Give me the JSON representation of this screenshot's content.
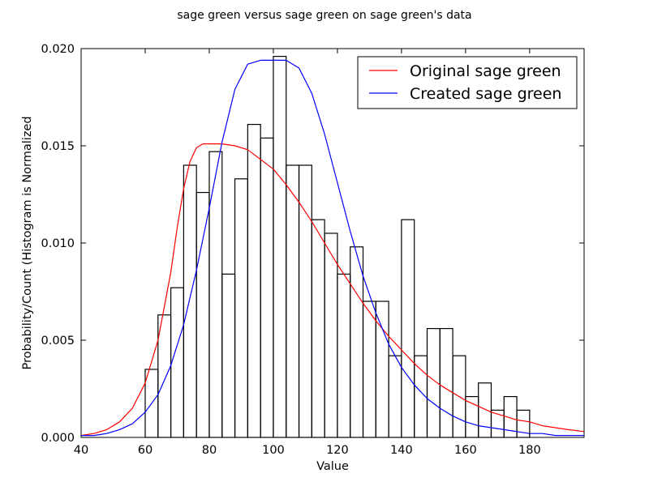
{
  "chart_data": {
    "type": "histogram",
    "title": "sage green versus sage green on sage green's data",
    "xlabel": "Value",
    "ylabel": "Probability/Count (Histogram is Normalized",
    "xlim": [
      40,
      197
    ],
    "ylim": [
      0,
      0.02
    ],
    "xticks": [
      40,
      60,
      80,
      100,
      120,
      140,
      160,
      180
    ],
    "yticks": [
      0.0,
      0.005,
      0.01,
      0.015,
      0.02
    ],
    "ytick_labels": [
      "0.000",
      "0.005",
      "0.010",
      "0.015",
      "0.020"
    ],
    "grid": false,
    "legend_position": "top-right",
    "histogram": {
      "bins": [
        {
          "x0": 60,
          "x1": 64,
          "density": 0.0035
        },
        {
          "x0": 64,
          "x1": 68,
          "density": 0.0063
        },
        {
          "x0": 68,
          "x1": 72,
          "density": 0.0077
        },
        {
          "x0": 72,
          "x1": 76,
          "density": 0.014
        },
        {
          "x0": 76,
          "x1": 80,
          "density": 0.0126
        },
        {
          "x0": 80,
          "x1": 84,
          "density": 0.0147
        },
        {
          "x0": 84,
          "x1": 88,
          "density": 0.0084
        },
        {
          "x0": 88,
          "x1": 92,
          "density": 0.0133
        },
        {
          "x0": 92,
          "x1": 96,
          "density": 0.0161
        },
        {
          "x0": 96,
          "x1": 100,
          "density": 0.0154
        },
        {
          "x0": 100,
          "x1": 104,
          "density": 0.0196
        },
        {
          "x0": 104,
          "x1": 108,
          "density": 0.014
        },
        {
          "x0": 108,
          "x1": 112,
          "density": 0.014
        },
        {
          "x0": 112,
          "x1": 116,
          "density": 0.0112
        },
        {
          "x0": 116,
          "x1": 120,
          "density": 0.0105
        },
        {
          "x0": 120,
          "x1": 124,
          "density": 0.0084
        },
        {
          "x0": 124,
          "x1": 128,
          "density": 0.0098
        },
        {
          "x0": 128,
          "x1": 132,
          "density": 0.007
        },
        {
          "x0": 132,
          "x1": 136,
          "density": 0.007
        },
        {
          "x0": 136,
          "x1": 140,
          "density": 0.0042
        },
        {
          "x0": 140,
          "x1": 144,
          "density": 0.0112
        },
        {
          "x0": 144,
          "x1": 148,
          "density": 0.0042
        },
        {
          "x0": 148,
          "x1": 152,
          "density": 0.0056
        },
        {
          "x0": 152,
          "x1": 156,
          "density": 0.0056
        },
        {
          "x0": 156,
          "x1": 160,
          "density": 0.0042
        },
        {
          "x0": 160,
          "x1": 164,
          "density": 0.0021
        },
        {
          "x0": 164,
          "x1": 168,
          "density": 0.0028
        },
        {
          "x0": 168,
          "x1": 172,
          "density": 0.0014
        },
        {
          "x0": 172,
          "x1": 176,
          "density": 0.0021
        },
        {
          "x0": 176,
          "x1": 180,
          "density": 0.0014
        }
      ]
    },
    "series": [
      {
        "name": "Original sage green",
        "type": "line",
        "color": "#ff0000",
        "x": [
          40,
          44,
          48,
          52,
          56,
          60,
          64,
          68,
          70,
          72,
          74,
          76,
          78,
          80,
          84,
          88,
          92,
          96,
          100,
          104,
          108,
          112,
          116,
          120,
          124,
          128,
          132,
          136,
          140,
          144,
          148,
          152,
          156,
          160,
          164,
          168,
          172,
          176,
          180,
          184,
          188,
          192,
          197
        ],
        "y": [
          0.0001,
          0.0002,
          0.0004,
          0.0008,
          0.0015,
          0.0028,
          0.005,
          0.0085,
          0.0108,
          0.0128,
          0.0142,
          0.0149,
          0.0151,
          0.0151,
          0.0151,
          0.015,
          0.0148,
          0.0143,
          0.0138,
          0.013,
          0.0121,
          0.0111,
          0.01,
          0.0089,
          0.0079,
          0.0069,
          0.006,
          0.0052,
          0.0045,
          0.0038,
          0.0032,
          0.0027,
          0.0023,
          0.0019,
          0.0016,
          0.0013,
          0.0011,
          0.0009,
          0.0008,
          0.0006,
          0.0005,
          0.0004,
          0.0003
        ]
      },
      {
        "name": "Created sage green",
        "type": "line",
        "color": "#0000ff",
        "x": [
          40,
          44,
          48,
          52,
          56,
          60,
          64,
          68,
          72,
          76,
          80,
          84,
          88,
          92,
          96,
          100,
          104,
          108,
          112,
          116,
          120,
          124,
          128,
          132,
          136,
          140,
          144,
          148,
          152,
          156,
          160,
          164,
          168,
          172,
          176,
          180,
          184,
          188,
          192,
          197
        ],
        "y": [
          0.0001,
          0.0001,
          0.0002,
          0.0004,
          0.0007,
          0.0013,
          0.0022,
          0.0037,
          0.0058,
          0.0086,
          0.0118,
          0.0152,
          0.0179,
          0.0192,
          0.0194,
          0.0194,
          0.0194,
          0.019,
          0.0177,
          0.0156,
          0.0131,
          0.0106,
          0.0083,
          0.0064,
          0.0048,
          0.0036,
          0.0027,
          0.002,
          0.0015,
          0.0011,
          0.0008,
          0.0006,
          0.0005,
          0.0004,
          0.0003,
          0.0002,
          0.0002,
          0.0001,
          0.0001,
          0.0001
        ]
      }
    ]
  }
}
